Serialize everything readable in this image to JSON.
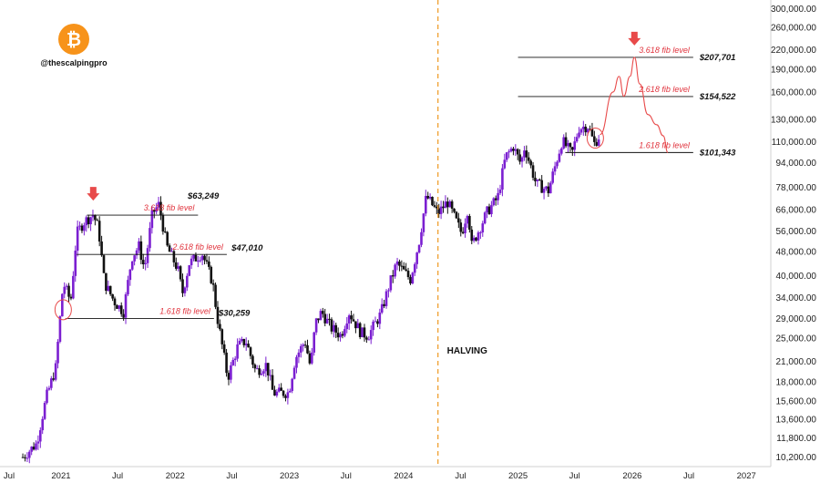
{
  "brand": {
    "handle": "@thescalpingpro",
    "logo_icon": "bitcoin-icon",
    "logo_color": "#f7931a"
  },
  "colors": {
    "candle": "#7b1fd1",
    "fib_label": "#e0323c",
    "arrow": "#e84a4a",
    "projection": "#e84a4a",
    "halving_line": "#f0a030",
    "level_line": "#111111"
  },
  "chart_data": {
    "type": "candlestick",
    "y_scale": "log",
    "ylim": [
      9500,
      320000
    ],
    "y_ticks": [
      {
        "value": 300000,
        "label": "300,000.00"
      },
      {
        "value": 260000,
        "label": "260,000.00"
      },
      {
        "value": 220000,
        "label": "220,000.00"
      },
      {
        "value": 190000,
        "label": "190,000.00"
      },
      {
        "value": 160000,
        "label": "160,000.00"
      },
      {
        "value": 130000,
        "label": "130,000.00"
      },
      {
        "value": 110000,
        "label": "110,000.00"
      },
      {
        "value": 94000,
        "label": "94,000.00"
      },
      {
        "value": 78000,
        "label": "78,000.00"
      },
      {
        "value": 66000,
        "label": "66,000.00"
      },
      {
        "value": 56000,
        "label": "56,000.00"
      },
      {
        "value": 48000,
        "label": "48,000.00"
      },
      {
        "value": 40000,
        "label": "40,000.00"
      },
      {
        "value": 34000,
        "label": "34,000.00"
      },
      {
        "value": 29000,
        "label": "29,000.00"
      },
      {
        "value": 25000,
        "label": "25,000.00"
      },
      {
        "value": 21000,
        "label": "21,000.00"
      },
      {
        "value": 18000,
        "label": "18,000.00"
      },
      {
        "value": 15600,
        "label": "15,600.00"
      },
      {
        "value": 13600,
        "label": "13,600.00"
      },
      {
        "value": 11800,
        "label": "11,800.00"
      },
      {
        "value": 10200,
        "label": "10,200.00"
      }
    ],
    "x_ticks": [
      {
        "date": "2020-07-01",
        "label": "Jul"
      },
      {
        "date": "2021-01-01",
        "label": "2021"
      },
      {
        "date": "2021-07-01",
        "label": "Jul"
      },
      {
        "date": "2022-01-01",
        "label": "2022"
      },
      {
        "date": "2022-07-01",
        "label": "Jul"
      },
      {
        "date": "2023-01-01",
        "label": "2023"
      },
      {
        "date": "2023-07-01",
        "label": "Jul"
      },
      {
        "date": "2024-01-01",
        "label": "2024"
      },
      {
        "date": "2024-07-01",
        "label": "Jul"
      },
      {
        "date": "2025-01-01",
        "label": "2025"
      },
      {
        "date": "2025-07-01",
        "label": "Jul"
      },
      {
        "date": "2026-01-01",
        "label": "2026"
      },
      {
        "date": "2026-07-01",
        "label": "Jul"
      },
      {
        "date": "2027-01-01",
        "label": "2027"
      }
    ],
    "xlim": [
      "2020-06-20",
      "2027-03-20"
    ],
    "price_path": [
      [
        "2020-09-01",
        10200
      ],
      [
        "2020-10-15",
        11300
      ],
      [
        "2020-11-15",
        16000
      ],
      [
        "2020-12-15",
        20000
      ],
      [
        "2021-01-08",
        38000
      ],
      [
        "2021-02-01",
        33000
      ],
      [
        "2021-02-20",
        55000
      ],
      [
        "2021-03-15",
        60000
      ],
      [
        "2021-04-14",
        63500
      ],
      [
        "2021-05-01",
        57000
      ],
      [
        "2021-05-20",
        38000
      ],
      [
        "2021-06-20",
        33000
      ],
      [
        "2021-07-20",
        30500
      ],
      [
        "2021-08-15",
        46000
      ],
      [
        "2021-09-07",
        50000
      ],
      [
        "2021-09-25",
        42000
      ],
      [
        "2021-10-20",
        64000
      ],
      [
        "2021-11-10",
        68500
      ],
      [
        "2021-12-05",
        50000
      ],
      [
        "2022-01-10",
        42000
      ],
      [
        "2022-01-24",
        35000
      ],
      [
        "2022-02-15",
        44000
      ],
      [
        "2022-03-28",
        47500
      ],
      [
        "2022-05-01",
        38000
      ],
      [
        "2022-05-15",
        29500
      ],
      [
        "2022-06-18",
        18500
      ],
      [
        "2022-07-20",
        23500
      ],
      [
        "2022-08-15",
        24500
      ],
      [
        "2022-09-15",
        19500
      ],
      [
        "2022-10-20",
        20500
      ],
      [
        "2022-11-10",
        16500
      ],
      [
        "2022-12-30",
        16600
      ],
      [
        "2023-01-20",
        21500
      ],
      [
        "2023-02-20",
        24500
      ],
      [
        "2023-03-10",
        20000
      ],
      [
        "2023-03-25",
        28000
      ],
      [
        "2023-04-14",
        30500
      ],
      [
        "2023-05-15",
        27000
      ],
      [
        "2023-06-15",
        25500
      ],
      [
        "2023-07-10",
        30500
      ],
      [
        "2023-08-18",
        26000
      ],
      [
        "2023-09-10",
        25500
      ],
      [
        "2023-10-20",
        30000
      ],
      [
        "2023-11-15",
        37000
      ],
      [
        "2023-12-10",
        44000
      ],
      [
        "2024-01-23",
        39000
      ],
      [
        "2024-02-20",
        52000
      ],
      [
        "2024-03-14",
        73000
      ],
      [
        "2024-04-20",
        64000
      ],
      [
        "2024-05-20",
        70000
      ],
      [
        "2024-07-05",
        55000
      ],
      [
        "2024-07-25",
        67000
      ],
      [
        "2024-08-05",
        50000
      ],
      [
        "2024-09-25",
        65000
      ],
      [
        "2024-10-28",
        72000
      ],
      [
        "2024-11-22",
        98000
      ],
      [
        "2024-12-17",
        106000
      ],
      [
        "2025-01-10",
        93000
      ],
      [
        "2025-01-22",
        106000
      ],
      [
        "2025-02-28",
        80000
      ],
      [
        "2025-04-08",
        76000
      ],
      [
        "2025-05-22",
        111000
      ],
      [
        "2025-06-22",
        100000
      ],
      [
        "2025-07-14",
        122000
      ],
      [
        "2025-08-14",
        124000
      ],
      [
        "2025-09-01",
        108000
      ],
      [
        "2025-09-20",
        116000
      ]
    ],
    "projection_path": [
      [
        "2025-09-20",
        116000
      ],
      [
        "2025-11-01",
        160000
      ],
      [
        "2025-11-20",
        180000
      ],
      [
        "2025-12-05",
        155000
      ],
      [
        "2025-12-25",
        180000
      ],
      [
        "2026-01-08",
        207701
      ],
      [
        "2026-01-25",
        170000
      ],
      [
        "2026-02-20",
        135000
      ],
      [
        "2026-03-20",
        125000
      ],
      [
        "2026-04-10",
        115000
      ],
      [
        "2026-04-25",
        101343
      ]
    ],
    "levels": [
      {
        "label": "3.618 fib level",
        "value": 63249,
        "price_text": "$63,249",
        "from": "2021-03-25",
        "to": "2022-03-15"
      },
      {
        "label": "2.618 fib level",
        "value": 47010,
        "price_text": "$47,010",
        "from": "2021-02-20",
        "to": "2022-06-15"
      },
      {
        "label": "1.618 fib level",
        "value": 29000,
        "price_text": "",
        "from": "2021-01-15",
        "to": "2022-05-05"
      },
      {
        "label": "",
        "value": 30259,
        "price_text": "$30,259",
        "from": "",
        "to": ""
      },
      {
        "label": "3.618 fib level",
        "value": 207701,
        "price_text": "$207,701",
        "from": "2025-01-01",
        "to": "2026-07-15"
      },
      {
        "label": "2.618 fib level",
        "value": 154522,
        "price_text": "$154,522",
        "from": "2025-01-01",
        "to": "2026-07-15"
      },
      {
        "label": "1.618 fib level",
        "value": 101343,
        "price_text": "$101,343",
        "from": "2025-06-01",
        "to": "2026-07-15"
      }
    ],
    "halving": {
      "date": "2024-04-20",
      "label": "HALVING"
    },
    "markers": [
      {
        "type": "arrow-down",
        "date": "2021-04-14",
        "value": 72000
      },
      {
        "type": "arrow-down",
        "date": "2026-01-08",
        "value": 232000
      },
      {
        "type": "circle",
        "date": "2021-01-08",
        "value": 31000
      },
      {
        "type": "circle",
        "date": "2025-09-05",
        "value": 113000
      }
    ]
  }
}
